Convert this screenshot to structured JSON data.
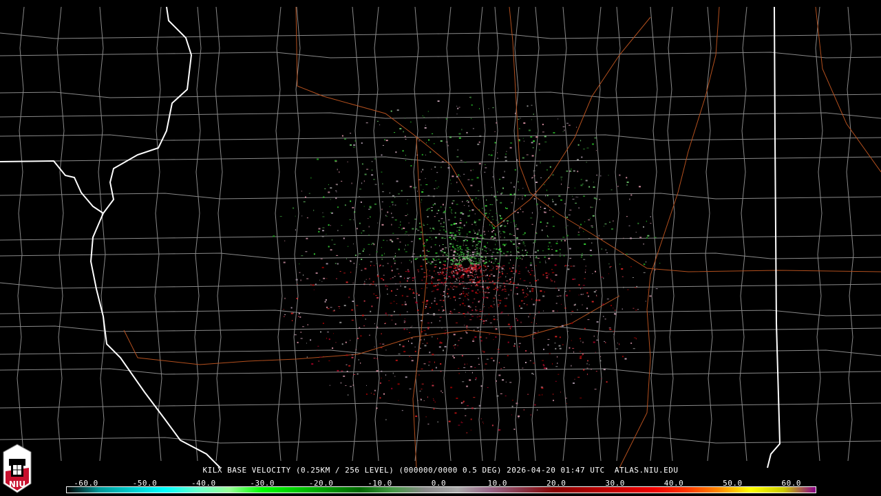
{
  "product_title": "KILX BASE VELOCITY (0.25KM / 256 LEVEL) (000000/0000 0.5 DEG) 2026-04-20 01:47 UTC  ATLAS.NIU.EDU",
  "logo": {
    "text": "NIU",
    "icon": "niu-shield-logo"
  },
  "colorbar": {
    "labels": [
      "-60.0",
      "-50.0",
      "-40.0",
      "-30.0",
      "-20.0",
      "-10.0",
      "0.0",
      "10.0",
      "20.0",
      "30.0",
      "40.0",
      "50.0",
      "60.0"
    ],
    "colors": [
      "#000000",
      "#009999",
      "#00cccc",
      "#00ffff",
      "#66ffcc",
      "#99ff99",
      "#00ff00",
      "#00cc00",
      "#009900",
      "#006600",
      "#449944",
      "#888888",
      "#aaaaaa",
      "#996688",
      "#883344",
      "#880000",
      "#aa0000",
      "#cc0000",
      "#ee0000",
      "#ff3300",
      "#ff8800",
      "#ffff00",
      "#cccc00",
      "#880088"
    ]
  },
  "map": {
    "state_border_color": "#ffffff",
    "county_border_color": "#8a8a8a",
    "highway_color": "#b4501e",
    "radar_site": "KILX"
  }
}
